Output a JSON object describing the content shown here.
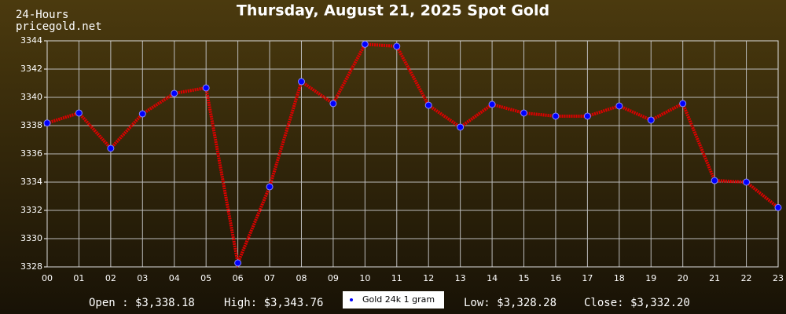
{
  "chart_data": {
    "type": "line",
    "title": "Thursday, August 21, 2025 Spot Gold",
    "corner_labels": [
      "24-Hours",
      "pricegold.net"
    ],
    "categories": [
      "00",
      "01",
      "02",
      "03",
      "04",
      "05",
      "06",
      "07",
      "08",
      "09",
      "10",
      "11",
      "12",
      "13",
      "14",
      "15",
      "16",
      "17",
      "18",
      "19",
      "20",
      "21",
      "22",
      "23"
    ],
    "series": [
      {
        "name": "Gold 24k 1 gram",
        "color": "#dd0000",
        "marker_color": "#0000ff",
        "values": [
          3338.18,
          3338.89,
          3336.39,
          3338.83,
          3340.28,
          3340.67,
          3328.28,
          3333.67,
          3341.11,
          3339.56,
          3343.76,
          3343.61,
          3339.44,
          3337.89,
          3339.5,
          3338.89,
          3338.67,
          3338.67,
          3339.39,
          3338.39,
          3339.56,
          3334.11,
          3334.0,
          3332.2
        ]
      }
    ],
    "ylim": [
      3328,
      3344
    ],
    "yticks": [
      3328,
      3330,
      3332,
      3334,
      3336,
      3338,
      3340,
      3342,
      3344
    ],
    "grid": true,
    "legend": "bottom",
    "stats": [
      "Open : $3,338.18",
      "High: $3,343.76",
      "Low: $3,328.28",
      "Close: $3,332.20"
    ]
  }
}
